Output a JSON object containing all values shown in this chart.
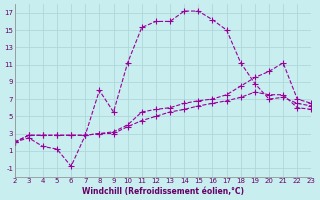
{
  "xlabel": "Windchill (Refroidissement éolien,°C)",
  "bg_color": "#c8eef0",
  "grid_color": "#b0d8da",
  "line_color": "#990099",
  "xmin": 2,
  "xmax": 23,
  "ymin": -2,
  "ymax": 18,
  "xticks": [
    2,
    3,
    4,
    5,
    6,
    7,
    8,
    9,
    10,
    11,
    12,
    13,
    14,
    15,
    16,
    17,
    18,
    19,
    20,
    21,
    22,
    23
  ],
  "yticks": [
    -1,
    1,
    3,
    5,
    7,
    9,
    11,
    13,
    15,
    17
  ],
  "series1_x": [
    2,
    3,
    4,
    5,
    6,
    7,
    8,
    9,
    10,
    11,
    12,
    13,
    14,
    15,
    16,
    17,
    18,
    19,
    20,
    21,
    22,
    23
  ],
  "series1_y": [
    2.0,
    2.5,
    1.5,
    1.2,
    -0.8,
    2.8,
    8.0,
    5.5,
    11.2,
    15.3,
    16.0,
    16.0,
    17.2,
    17.2,
    16.2,
    15.0,
    11.2,
    8.8,
    7.0,
    7.2,
    6.5,
    6.2
  ],
  "series2_x": [
    2,
    3,
    4,
    5,
    6,
    7,
    8,
    9,
    10,
    11,
    12,
    13,
    14,
    15,
    16,
    17,
    18,
    19,
    20,
    21,
    22,
    23
  ],
  "series2_y": [
    2.0,
    2.8,
    2.8,
    2.8,
    2.8,
    2.8,
    3.0,
    3.2,
    4.0,
    5.5,
    5.8,
    6.0,
    6.5,
    6.8,
    7.0,
    7.5,
    8.5,
    9.5,
    10.2,
    11.2,
    7.0,
    6.5
  ],
  "series3_x": [
    2,
    3,
    4,
    5,
    6,
    7,
    8,
    9,
    10,
    11,
    12,
    13,
    14,
    15,
    16,
    17,
    18,
    19,
    20,
    21,
    22,
    23
  ],
  "series3_y": [
    2.0,
    2.8,
    2.8,
    2.8,
    2.8,
    2.8,
    3.0,
    3.0,
    3.8,
    4.5,
    5.0,
    5.5,
    5.8,
    6.2,
    6.5,
    6.8,
    7.2,
    7.8,
    7.5,
    7.5,
    6.0,
    5.8
  ]
}
